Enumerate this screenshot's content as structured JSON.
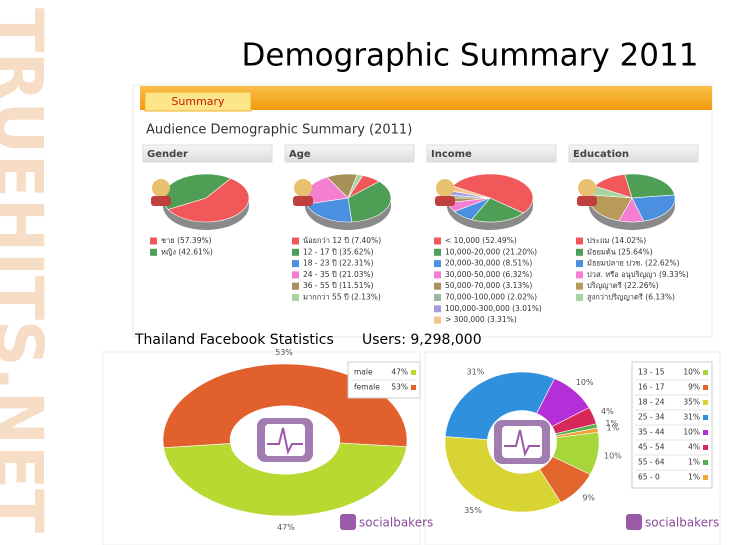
{
  "title": "Demographic Summary 2011",
  "watermark": "TRUEHITS.NET",
  "tab": "Summary",
  "panel_title": "Audience Demographic Summary (2011)",
  "facebook_title": "Thailand Facebook Statistics",
  "facebook_users": "Users: 9,298,000",
  "brand": "socialbakers",
  "chart_data": [
    {
      "type": "pie",
      "title": "Gender",
      "categories": [
        "ชาย (57.39%)",
        "หญิง (42.61%)"
      ],
      "values": [
        57.39,
        42.61
      ],
      "colors": [
        "#f0585a",
        "#4e9f55"
      ]
    },
    {
      "type": "pie",
      "title": "Age",
      "categories": [
        "น้อยกว่า 12 ปี (7.40%)",
        "12 - 17 ปี (35.62%)",
        "18 - 23 ปี (22.31%)",
        "24 - 35 ปี (21.03%)",
        "36 - 55 ปี (11.51%)",
        "มากกว่า 55 ปี (2.13%)"
      ],
      "values": [
        7.4,
        35.62,
        22.31,
        21.03,
        11.51,
        2.13
      ],
      "colors": [
        "#f0585a",
        "#4e9f55",
        "#4a8fe0",
        "#f47fd0",
        "#a8905a",
        "#a8d4a4"
      ]
    },
    {
      "type": "pie",
      "title": "Income",
      "categories": [
        "< 10,000 (52.49%)",
        "10,000-20,000 (21.20%)",
        "20,000-30,000 (8.51%)",
        "30,000-50,000 (6.32%)",
        "50,000-70,000 (3.13%)",
        "70,000-100,000 (2.02%)",
        "100,000-300,000 (3.01%)",
        "> 300,000 (3.31%)"
      ],
      "values": [
        52.49,
        21.2,
        8.51,
        6.32,
        3.13,
        2.02,
        3.01,
        3.31
      ],
      "colors": [
        "#f0585a",
        "#4e9f55",
        "#4a8fe0",
        "#f47fd0",
        "#a8905a",
        "#9cb8a4",
        "#a89ce0",
        "#f4c48c"
      ]
    },
    {
      "type": "pie",
      "title": "Education",
      "categories": [
        "ประถม (14.02%)",
        "มัธยมต้น (25.64%)",
        "มัธยมปลาย ปวช. (22.62%)",
        "ปวส. หรือ อนุปริญญา (9.33%)",
        "ปริญญาตรี (22.26%)",
        "สูงกว่าปริญญาตรี (6.13%)"
      ],
      "values": [
        14.02,
        25.64,
        22.62,
        9.33,
        22.26,
        6.13
      ],
      "colors": [
        "#f0585a",
        "#4e9f55",
        "#4a8fe0",
        "#f47fd0",
        "#b89a5a",
        "#a8d4a4"
      ]
    },
    {
      "type": "donut",
      "categories": [
        "male",
        "female"
      ],
      "values": [
        47,
        53
      ],
      "value_labels": [
        "47%",
        "53%"
      ],
      "colors": [
        "#b8d832",
        "#e2602c"
      ]
    },
    {
      "type": "donut",
      "categories": [
        "13 - 15",
        "16 - 17",
        "18 - 24",
        "25 - 34",
        "35 - 44",
        "45 - 54",
        "55 - 64",
        "65 - 0"
      ],
      "values": [
        10,
        9,
        35,
        31,
        10,
        4,
        1,
        1
      ],
      "value_labels": [
        "10%",
        "9%",
        "35%",
        "31%",
        "10%",
        "4%",
        "1%",
        "1%"
      ],
      "colors": [
        "#a6d63a",
        "#e2652e",
        "#d8d434",
        "#2f90de",
        "#b52fd8",
        "#d8285a",
        "#4fb04f",
        "#f2a23c"
      ]
    }
  ]
}
